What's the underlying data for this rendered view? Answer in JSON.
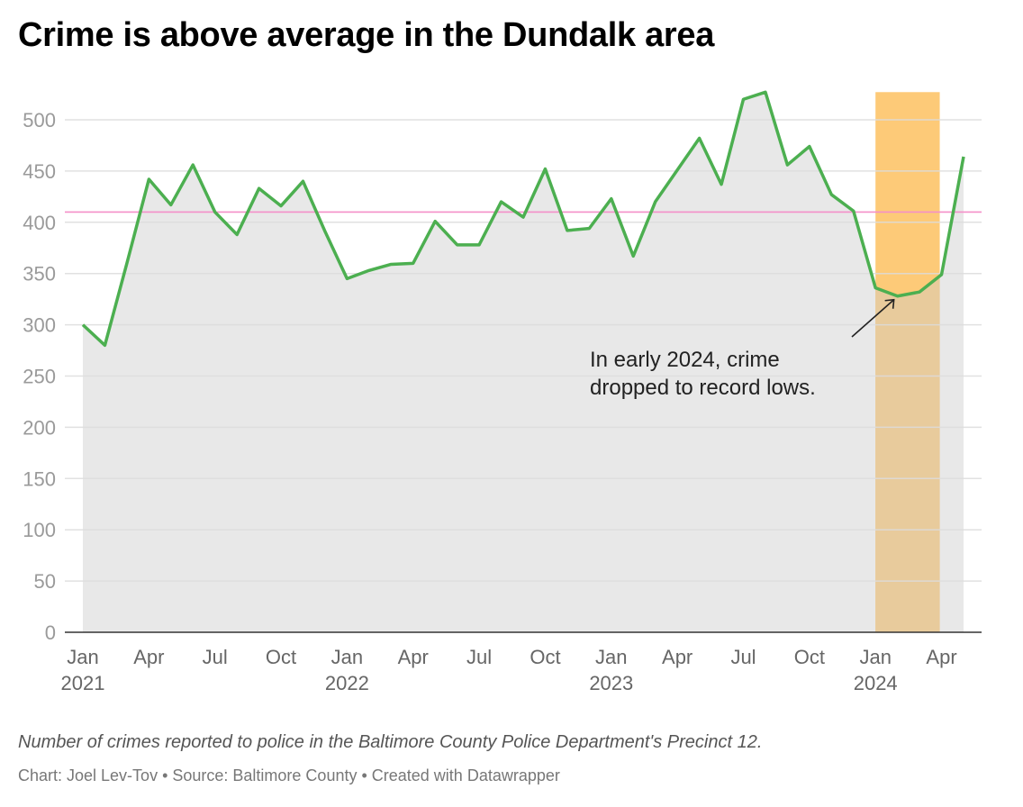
{
  "title": "Crime is above average in the Dundalk area",
  "caption": "Number of crimes reported to police in the Baltimore County Police Department's Precinct 12.",
  "credit": "Chart: Joel Lev-Tov • Source: Baltimore County • Created with Datawrapper",
  "chart_data": {
    "type": "area",
    "title": "Crime is above average in the Dundalk area",
    "xlabel": "",
    "ylabel": "",
    "ylim": [
      0,
      527
    ],
    "y_ticks": [
      0,
      50,
      100,
      150,
      200,
      250,
      300,
      350,
      400,
      450,
      500
    ],
    "grid": true,
    "x_start": "Jan 2021",
    "x_end": "May 2024",
    "x_ticks": [
      {
        "index": 0,
        "month": "Jan",
        "year": "2021"
      },
      {
        "index": 3,
        "month": "Apr",
        "year": ""
      },
      {
        "index": 6,
        "month": "Jul",
        "year": ""
      },
      {
        "index": 9,
        "month": "Oct",
        "year": ""
      },
      {
        "index": 12,
        "month": "Jan",
        "year": "2022"
      },
      {
        "index": 15,
        "month": "Apr",
        "year": ""
      },
      {
        "index": 18,
        "month": "Jul",
        "year": ""
      },
      {
        "index": 21,
        "month": "Oct",
        "year": ""
      },
      {
        "index": 24,
        "month": "Jan",
        "year": "2023"
      },
      {
        "index": 27,
        "month": "Apr",
        "year": ""
      },
      {
        "index": 30,
        "month": "Jul",
        "year": ""
      },
      {
        "index": 33,
        "month": "Oct",
        "year": ""
      },
      {
        "index": 36,
        "month": "Jan",
        "year": "2024"
      },
      {
        "index": 39,
        "month": "Apr",
        "year": ""
      }
    ],
    "series": [
      {
        "name": "Crimes reported",
        "color": "#4caf50",
        "values": [
          300,
          280,
          360,
          442,
          417,
          456,
          410,
          388,
          433,
          416,
          440,
          391,
          345,
          353,
          359,
          360,
          401,
          378,
          378,
          420,
          405,
          452,
          392,
          394,
          423,
          367,
          420,
          451,
          482,
          437,
          520,
          527,
          456,
          474,
          427,
          411,
          336,
          328,
          332,
          349,
          464
        ]
      }
    ],
    "reference_line": {
      "value": 410,
      "color": "#f48fc8"
    },
    "highlight_range": {
      "from_index": 36,
      "to_index": 39,
      "color": "#fdca78"
    },
    "annotation": {
      "line1": "In early 2024, crime",
      "line2": "dropped to record lows.",
      "target_index": 37
    },
    "area_color": "#e8e8e8"
  }
}
